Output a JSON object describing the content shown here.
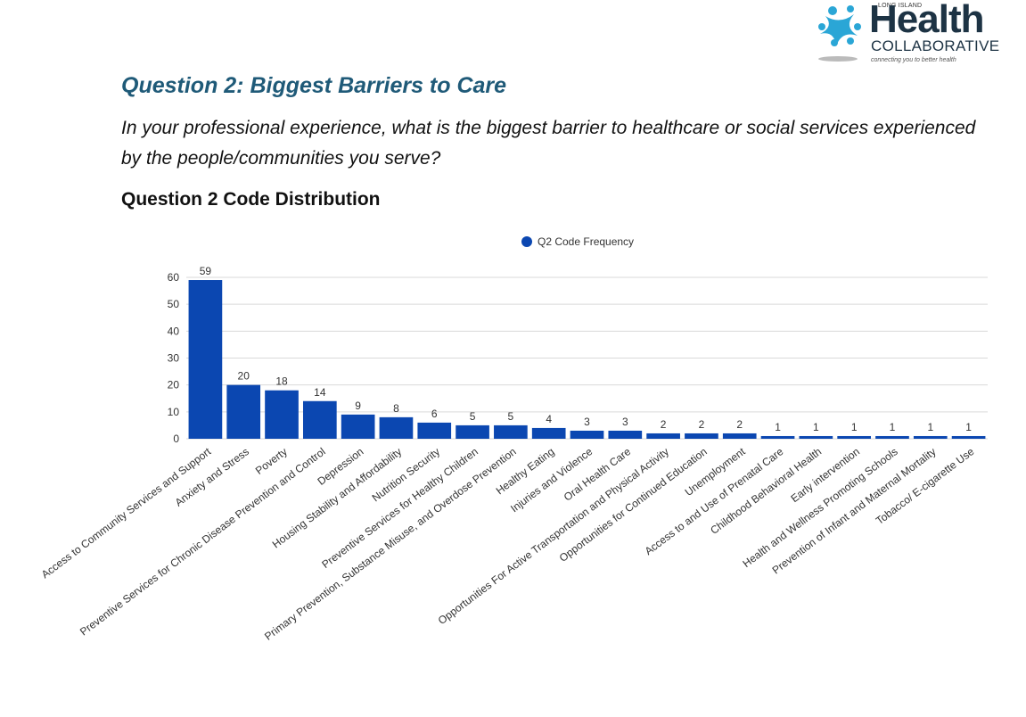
{
  "logo": {
    "small": "LONG ISLAND",
    "health": "Health",
    "collaborative": "COLLABORATIVE",
    "tagline": "connecting you to better health"
  },
  "question": {
    "title": "Question 2: Biggest Barriers to Care",
    "text": "In your professional experience, what is the biggest barrier to healthcare or social services experienced by the people/communities you serve?"
  },
  "chart_heading": "Question 2 Code Distribution",
  "colors": {
    "bar": "#0b47b1",
    "grid": "#d9d9d9",
    "text": "#333333"
  },
  "chart_data": {
    "type": "bar",
    "title": "Question 2 Code Distribution",
    "legend": "Q2 Code Frequency",
    "legend_position": "top",
    "ylim": [
      0,
      60
    ],
    "yticks": [
      0,
      10,
      20,
      30,
      40,
      50,
      60
    ],
    "grid": true,
    "xlabel": "",
    "ylabel": "",
    "categories": [
      "Access to Community Services and Support",
      "Anxiety and Stress",
      "Poverty",
      "Preventive Services for Chronic Disease Prevention and Control",
      "Depression",
      "Housing Stability and Affordability",
      "Nutrition Security",
      "Preventive Services for Healthy Children",
      "Primary Prevention, Substance Misuse, and Overdose Prevention",
      "Healthy Eating",
      "Injuries and Violence",
      "Oral Health Care",
      "Opportunities For Active Transportation and Physical Activity",
      "Opportunities for Continued Education",
      "Unemployment",
      "Access to and Use of Prenatal Care",
      "Childhood Behavioral Health",
      "Early intervention",
      "Health and Wellness Promoting Schools",
      "Prevention of Infant and Maternal Mortality",
      "Tobacco/ E-cigarette Use"
    ],
    "values": [
      59,
      20,
      18,
      14,
      9,
      8,
      6,
      5,
      5,
      4,
      3,
      3,
      2,
      2,
      2,
      1,
      1,
      1,
      1,
      1,
      1
    ]
  }
}
